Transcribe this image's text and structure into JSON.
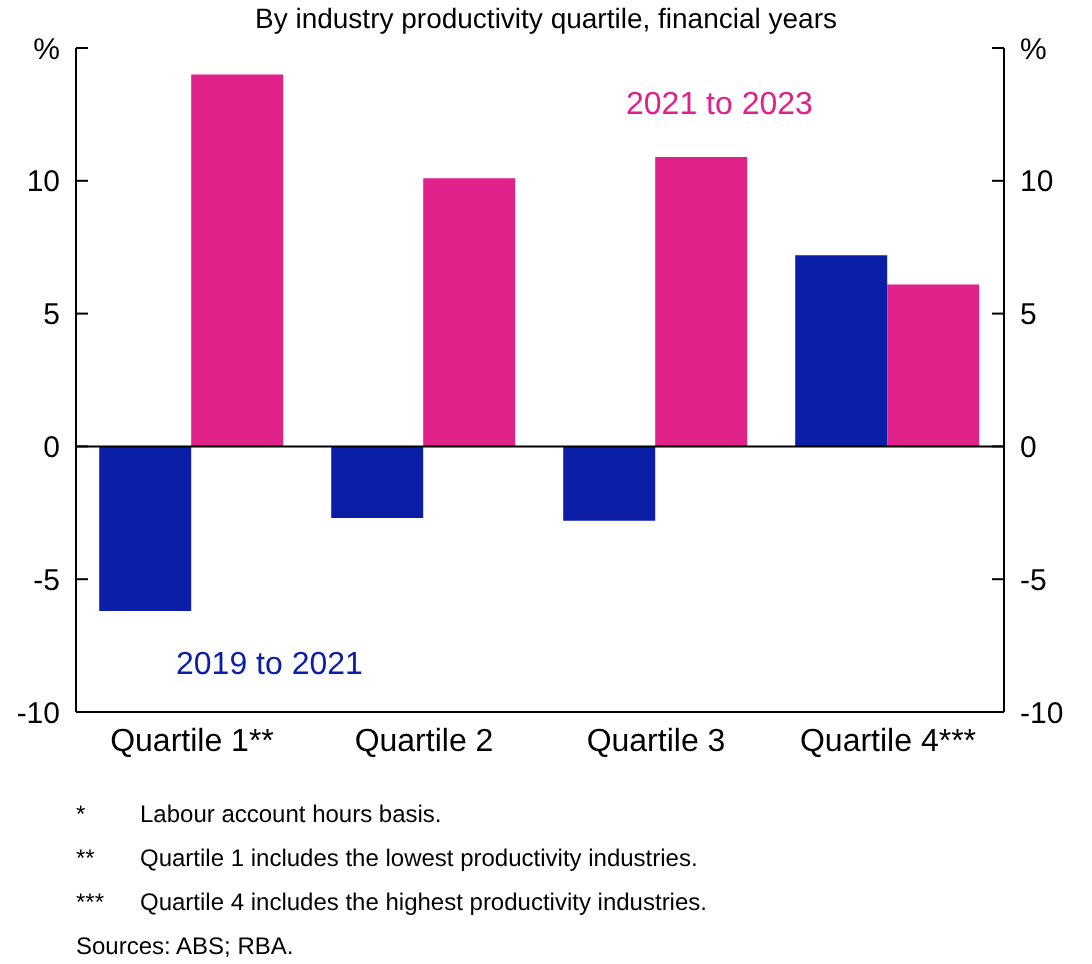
{
  "chart_data": {
    "type": "bar",
    "subtitle": "By industry productivity quartile, financial years",
    "categories": [
      "Quartile 1**",
      "Quartile 2",
      "Quartile 3",
      "Quartile 4***"
    ],
    "series": [
      {
        "name": "2019 to 2021",
        "color": "#0b1ea8",
        "values": [
          -6.2,
          -2.7,
          -2.8,
          7.2
        ]
      },
      {
        "name": "2021 to 2023",
        "color": "#e0218a",
        "values": [
          14.0,
          10.1,
          10.9,
          6.1
        ]
      }
    ],
    "ylim": [
      -10,
      15
    ],
    "yticks": [
      -10,
      -5,
      0,
      5,
      10,
      {
        "value": 15,
        "label": "%"
      }
    ],
    "y2lim": [
      -10,
      15
    ],
    "y2ticks": [
      -10,
      -5,
      0,
      5,
      10,
      {
        "value": 15,
        "label": "%"
      }
    ],
    "ref_lines": [
      {
        "axis": "y",
        "value": 0,
        "color": "#000000"
      }
    ],
    "annotations": [
      "* Labour account hours basis.",
      "** Quartile 1 includes the lowest productivity industries.",
      "*** Quartile 4 includes the highest productivity industries.",
      "Sources: ABS; RBA."
    ]
  }
}
